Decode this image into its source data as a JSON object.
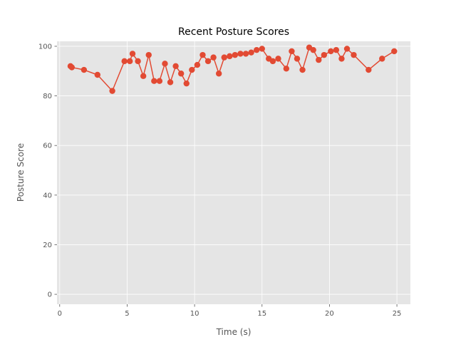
{
  "chart_data": {
    "type": "line",
    "title": "Recent Posture Scores",
    "xlabel": "Time (s)",
    "ylabel": "Posture Score",
    "xlim": [
      -0.2,
      26.0
    ],
    "ylim": [
      -4.0,
      102.0
    ],
    "x_ticks": [
      0,
      5,
      10,
      15,
      20,
      25
    ],
    "y_ticks": [
      0,
      20,
      40,
      60,
      80,
      100
    ],
    "grid": true,
    "colors": {
      "series": "#E24A33",
      "plot_background": "#E5E5E5",
      "grid": "#FFFFFF",
      "tick_text": "#555555"
    },
    "series": [
      {
        "x": [
          0.8,
          0.9,
          1.8,
          2.8,
          3.9,
          4.8,
          5.2,
          5.4,
          5.8,
          6.2,
          6.6,
          7.0,
          7.4,
          7.8,
          8.2,
          8.6,
          9.0,
          9.4,
          9.8,
          10.2,
          10.6,
          11.0,
          11.4,
          11.8,
          12.2,
          12.6,
          13.0,
          13.4,
          13.8,
          14.2,
          14.6,
          15.0,
          15.5,
          15.8,
          16.2,
          16.8,
          17.2,
          17.6,
          18.0,
          18.5,
          18.8,
          19.2,
          19.6,
          20.1,
          20.5,
          20.9,
          21.3,
          21.8,
          22.9,
          23.9,
          24.8
        ],
        "y": [
          92,
          91.5,
          90.5,
          88.5,
          82,
          94,
          94,
          97,
          94,
          88,
          96.5,
          86,
          86,
          93,
          85.5,
          92,
          89,
          85,
          90.5,
          92.5,
          96.5,
          94,
          95.5,
          89,
          95.5,
          96,
          96.5,
          97,
          97,
          97.5,
          98.5,
          99,
          95,
          94,
          95,
          91,
          98,
          95,
          90.5,
          99.5,
          98.5,
          94.5,
          96.5,
          98,
          98.5,
          95,
          99,
          96.5,
          90.5,
          95,
          98
        ]
      }
    ]
  }
}
